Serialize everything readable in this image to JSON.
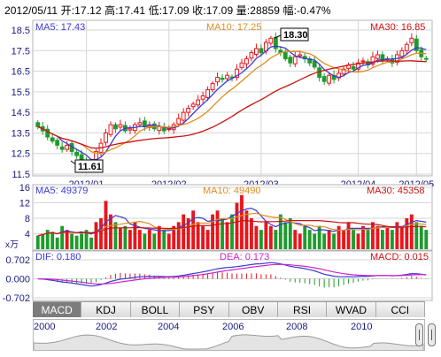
{
  "header": {
    "date": "2012/05/11",
    "open": "开:17.12",
    "high": "高:17.41",
    "low": "低:17.09",
    "close": "收:17.09",
    "volume": "量:28859",
    "change": "幅:-0.47%"
  },
  "price": {
    "ma5_label": "MA5: 17.43",
    "ma10_label": "MA10: 17.25",
    "ma30_label": "MA30: 16.85",
    "y_ticks": [
      "18.5",
      "17.5",
      "16.5",
      "15.5",
      "14.5",
      "13.5",
      "12.5",
      "11.5"
    ],
    "x_ticks": [
      "2012/01",
      "2012/02",
      "2012/03",
      "2012/04",
      "2012/05"
    ],
    "max_label": "18.30",
    "min_label": "11.61"
  },
  "volume": {
    "ma5_label": "MA5: 49379",
    "ma10_label": "MA10: 49490",
    "ma30_label": "MA30: 45358",
    "y_ticks": [
      "16",
      "12",
      "8",
      "4"
    ],
    "unit": "x万"
  },
  "macd": {
    "dif_label": "DIF: 0.180",
    "dea_label": "DEA: 0.173",
    "macd_label": "MACD: 0.015",
    "y_ticks": [
      "0.702",
      "0.000",
      "-0.702"
    ]
  },
  "tabs": [
    "MACD",
    "KDJ",
    "BOLL",
    "PSY",
    "OBV",
    "RSI",
    "WVAD",
    "CCI"
  ],
  "navigator": {
    "years": [
      "2000",
      "2002",
      "2004",
      "2006",
      "2008",
      "2010"
    ]
  },
  "colors": {
    "up": "#e8151b",
    "down": "#1e9b2c",
    "ma5": "#3a3ad6",
    "ma10": "#e08b1e",
    "ma30": "#cc1111",
    "grid": "#d6d6d6",
    "axis_text": "#1a1a80"
  },
  "chart_data": {
    "type": "candlestick",
    "x_ticks": [
      "2012/01",
      "2012/02",
      "2012/03",
      "2012/04",
      "2012/05"
    ],
    "price_ylim": [
      11.5,
      18.8
    ],
    "price_yticks": [
      18.5,
      17.5,
      16.5,
      15.5,
      14.5,
      13.5,
      12.5,
      11.5
    ],
    "close_series": [
      13.8,
      13.6,
      13.3,
      13.1,
      12.9,
      12.7,
      12.9,
      12.6,
      12.4,
      12.2,
      12.0,
      11.8,
      12.6,
      13.0,
      13.5,
      13.9,
      13.7,
      13.9,
      13.6,
      13.7,
      13.9,
      14.0,
      13.8,
      13.9,
      13.7,
      13.8,
      13.6,
      13.7,
      13.9,
      14.2,
      14.5,
      14.7,
      14.9,
      15.1,
      15.3,
      15.6,
      15.9,
      16.2,
      16.1,
      16.3,
      16.2,
      16.6,
      16.9,
      17.1,
      17.4,
      17.6,
      17.4,
      17.9,
      18.1,
      17.6,
      17.4,
      17.1,
      16.9,
      17.2,
      17.3,
      17.1,
      16.9,
      16.7,
      16.2,
      16.0,
      16.3,
      16.1,
      16.4,
      16.6,
      16.8,
      16.6,
      16.9,
      17.0,
      16.8,
      17.2,
      17.3,
      17.0,
      17.1,
      16.9,
      17.3,
      17.5,
      17.8,
      18.1,
      17.5,
      17.2,
      17.1
    ],
    "max_price": 18.3,
    "min_price": 11.61,
    "volume_ylim": [
      0,
      16
    ],
    "volume_yticks": [
      16,
      12,
      8,
      4
    ],
    "volume_series": [
      3.5,
      4,
      5,
      4.5,
      3,
      6,
      5,
      4,
      3.5,
      4,
      5,
      3,
      7,
      8,
      12.5,
      9,
      7,
      5.5,
      6,
      5,
      7,
      5,
      4,
      5,
      4,
      6,
      5,
      4,
      6,
      7,
      9,
      8,
      10,
      7,
      6,
      5,
      9,
      10,
      8,
      7,
      9,
      12,
      14,
      10,
      8,
      6,
      5,
      7,
      6,
      5,
      9,
      7,
      8,
      5,
      4,
      6,
      5,
      4,
      6,
      4,
      5,
      4,
      6,
      5,
      7,
      5,
      4,
      6,
      5,
      7,
      6,
      5,
      6,
      5,
      7,
      6,
      8,
      9,
      7,
      6,
      5
    ],
    "macd_ylim": [
      -0.702,
      0.702
    ],
    "macd_yticks": [
      0.702,
      0.0,
      -0.702
    ],
    "ma5": 17.43,
    "ma10": 17.25,
    "ma30": 16.85,
    "volume_ma5": 49379,
    "volume_ma10": 49490,
    "volume_ma30": 45358,
    "dif": 0.18,
    "dea": 0.173,
    "macd": 0.015
  }
}
